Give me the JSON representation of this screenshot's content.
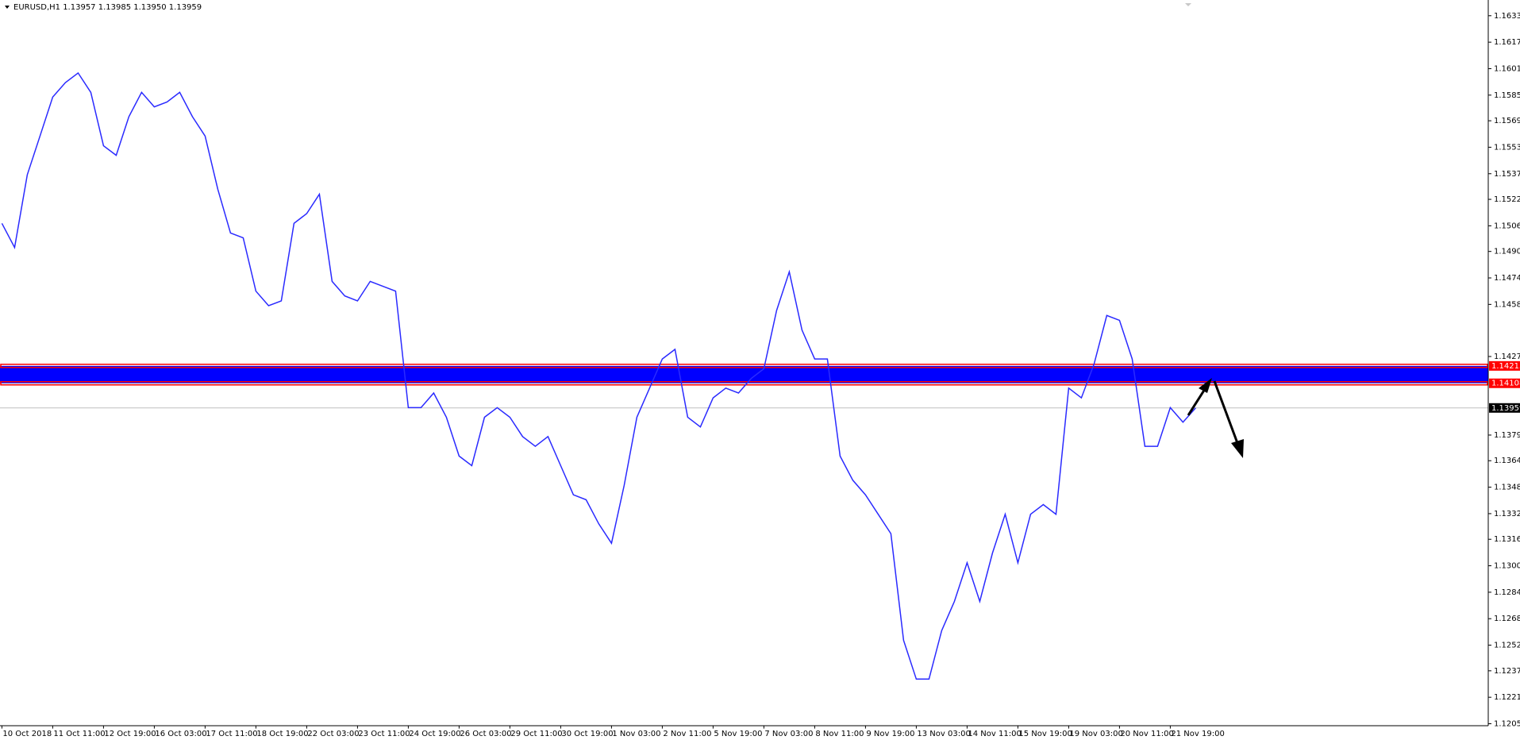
{
  "chart_data": {
    "type": "line",
    "title": "EURUSD,H1  1.13957 1.13985 1.13950 1.13959",
    "categories": [
      "10 Oct 2018",
      null,
      null,
      null,
      "11 Oct 11:00",
      null,
      null,
      null,
      "12 Oct 19:00",
      null,
      null,
      null,
      "16 Oct 03:00",
      null,
      null,
      null,
      "17 Oct 11:00",
      null,
      null,
      null,
      "18 Oct 19:00",
      null,
      null,
      null,
      "22 Oct 03:00",
      null,
      null,
      null,
      "23 Oct 11:00",
      null,
      null,
      null,
      "24 Oct 19:00",
      null,
      null,
      null,
      "26 Oct 03:00",
      null,
      null,
      null,
      "29 Oct 11:00",
      null,
      null,
      null,
      "30 Oct 19:00",
      null,
      null,
      null,
      "1 Nov 03:00",
      null,
      null,
      null,
      "2 Nov 11:00",
      null,
      null,
      null,
      "5 Nov 19:00",
      null,
      null,
      null,
      "7 Nov 03:00",
      null,
      null,
      null,
      "8 Nov 11:00",
      null,
      null,
      null,
      "9 Nov 19:00",
      null,
      null,
      null,
      "13 Nov 03:00",
      null,
      null,
      null,
      "14 Nov 11:00",
      null,
      null,
      null,
      "15 Nov 19:00",
      null,
      null,
      null,
      "19 Nov 03:00",
      null,
      null,
      null,
      "20 Nov 11:00",
      null,
      null,
      null,
      "21 Nov 19:00",
      null,
      null
    ],
    "series": [
      {
        "color": "#2a2aff",
        "values": [
          1.15075,
          1.14929,
          1.15369,
          1.15603,
          1.15838,
          1.15926,
          1.15984,
          1.15867,
          1.15544,
          1.15486,
          1.1572,
          1.15867,
          1.15779,
          1.15808,
          1.15867,
          1.1572,
          1.15603,
          1.15281,
          1.15017,
          1.14987,
          1.14665,
          1.14577,
          1.14606,
          1.15075,
          1.15134,
          1.15251,
          1.14724,
          1.14636,
          1.14606,
          1.14724,
          1.14694,
          1.14665,
          1.13961,
          1.13961,
          1.14049,
          1.13903,
          1.13668,
          1.1361,
          1.13903,
          1.13961,
          1.13903,
          1.13786,
          1.13727,
          1.13786,
          1.1361,
          1.13434,
          1.13404,
          1.13258,
          1.13141,
          1.13492,
          1.13903,
          1.14079,
          1.14255,
          1.14313,
          1.13903,
          1.13844,
          1.1402,
          1.14079,
          1.14049,
          1.14137,
          1.14196,
          1.14548,
          1.14782,
          1.1443,
          1.14255,
          1.14255,
          1.13668,
          1.13522,
          1.13434,
          1.13316,
          1.13199,
          1.12554,
          1.1232,
          1.1232,
          1.12613,
          1.12789,
          1.13023,
          1.12789,
          1.13082,
          1.13316,
          1.13023,
          1.13316,
          1.13375,
          1.13316,
          1.14079,
          1.1402,
          1.14225,
          1.14518,
          1.14489,
          1.14255,
          1.13727,
          1.13727,
          1.13961,
          1.13873,
          1.13959
        ]
      }
    ],
    "ylim": [
      1.1204,
      1.16425
    ],
    "yticks": [
      {
        "value": 1.1633,
        "label": "1.16330"
      },
      {
        "value": 1.1617,
        "label": "1.16170"
      },
      {
        "value": 1.1601,
        "label": "1.16010"
      },
      {
        "value": 1.1585,
        "label": "1.15850"
      },
      1.15695,
      1.15535,
      1.15375,
      {
        "value": 1.1522,
        "label": "1.15220"
      },
      {
        "value": 1.1506,
        "label": "1.15060"
      },
      1.14905,
      1.14745,
      1.14585,
      {
        "value": 1.1427,
        "label": "1.14270"
      },
      1.13795,
      {
        "value": 1.1364,
        "label": "1.13640"
      },
      {
        "value": 1.1348,
        "label": "1.13480"
      },
      {
        "value": 1.1332,
        "label": "1.13320"
      },
      1.13165,
      1.13005,
      1.12845,
      1.12685,
      1.12525,
      {
        "value": 1.1237,
        "label": "1.12370"
      },
      {
        "value": 1.1221,
        "label": "1.12210"
      },
      {
        "value": 1.1205,
        "label": "1.12050"
      }
    ],
    "zone": [
      1.14213,
      1.14108
    ],
    "zone_color": "#0000ff",
    "zone_border": "#ff0000",
    "current_price": 1.13959,
    "grid": false
  }
}
